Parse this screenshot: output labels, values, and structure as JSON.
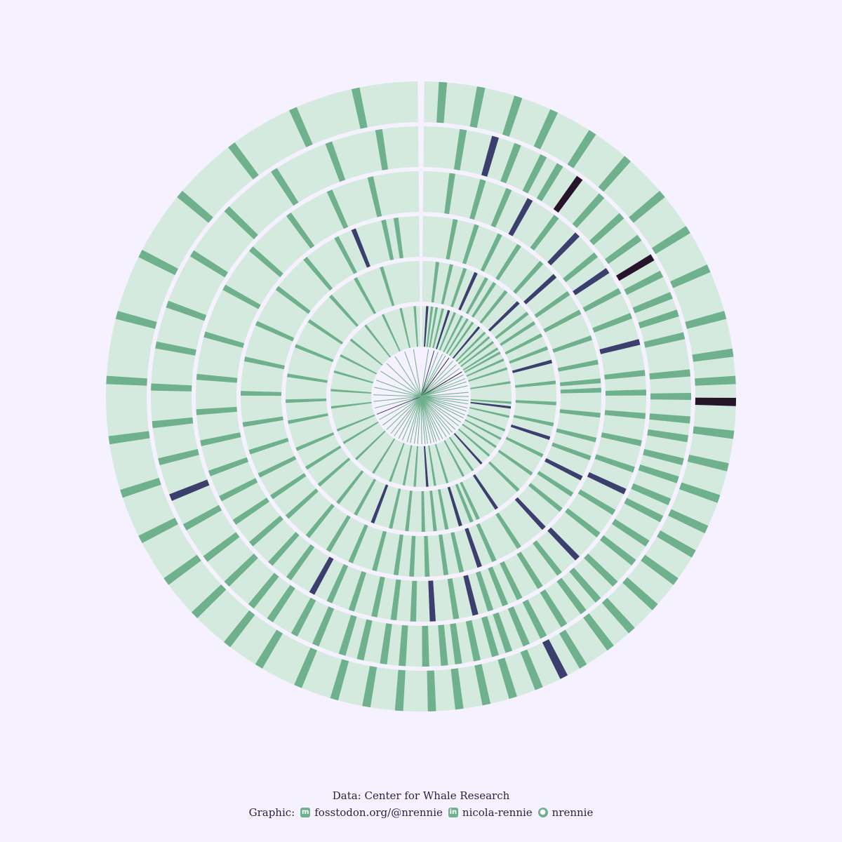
{
  "chart_data": {
    "type": "radial-stripes",
    "title": "",
    "xlabel": "",
    "ylabel": "",
    "ring_count": 6,
    "colors": {
      "background": "#f6f1fe",
      "base": "#d4eadf",
      "level_1": "#6fb08d",
      "level_2": "#3c3f6d",
      "level_3": "#27142b",
      "ring_gap": "#f6f1fe"
    },
    "rings": [
      {
        "ring": 1,
        "stripes": [
          [
            4,
            2
          ],
          [
            7,
            1
          ],
          [
            10,
            1
          ],
          [
            14,
            1
          ],
          [
            18,
            2
          ],
          [
            22,
            1
          ],
          [
            27,
            1
          ],
          [
            31,
            1
          ],
          [
            35,
            1
          ],
          [
            40,
            2
          ],
          [
            45,
            1
          ],
          [
            49,
            1
          ],
          [
            53,
            1
          ],
          [
            58,
            1
          ],
          [
            61,
            1
          ],
          [
            66,
            1
          ],
          [
            72,
            1
          ],
          [
            81,
            1
          ],
          [
            94,
            1
          ],
          [
            97,
            2
          ],
          [
            103,
            1
          ],
          [
            112,
            1
          ],
          [
            118,
            1
          ],
          [
            124,
            1
          ],
          [
            131,
            1
          ],
          [
            138,
            2
          ],
          [
            145,
            1
          ],
          [
            152,
            1
          ],
          [
            163,
            1
          ],
          [
            171,
            1
          ],
          [
            176,
            2
          ],
          [
            184,
            1
          ],
          [
            191,
            1
          ],
          [
            200,
            1
          ],
          [
            212,
            1
          ],
          [
            226,
            1
          ],
          [
            239,
            1
          ],
          [
            248,
            1
          ],
          [
            263,
            1
          ],
          [
            274,
            1
          ],
          [
            286,
            1
          ],
          [
            297,
            1
          ],
          [
            309,
            1
          ],
          [
            322,
            1
          ],
          [
            335,
            1
          ],
          [
            347,
            1
          ],
          [
            356,
            1
          ]
        ]
      },
      {
        "ring": 2,
        "stripes": [
          [
            7,
            1
          ],
          [
            13,
            1
          ],
          [
            19,
            1
          ],
          [
            24,
            2
          ],
          [
            29,
            1
          ],
          [
            33,
            1
          ],
          [
            39,
            1
          ],
          [
            46,
            2
          ],
          [
            52,
            1
          ],
          [
            57,
            1
          ],
          [
            63,
            1
          ],
          [
            69,
            1
          ],
          [
            75,
            2
          ],
          [
            84,
            1
          ],
          [
            93,
            1
          ],
          [
            102,
            1
          ],
          [
            108,
            2
          ],
          [
            116,
            1
          ],
          [
            125,
            1
          ],
          [
            134,
            1
          ],
          [
            146,
            2
          ],
          [
            155,
            1
          ],
          [
            158,
            1
          ],
          [
            163,
            2
          ],
          [
            169,
            1
          ],
          [
            174,
            1
          ],
          [
            179,
            1
          ],
          [
            186,
            1
          ],
          [
            193,
            1
          ],
          [
            201,
            2
          ],
          [
            209,
            1
          ],
          [
            218,
            1
          ],
          [
            229,
            1
          ],
          [
            238,
            1
          ],
          [
            247,
            1
          ],
          [
            259,
            1
          ],
          [
            268,
            1
          ],
          [
            279,
            1
          ],
          [
            292,
            1
          ],
          [
            304,
            1
          ],
          [
            318,
            1
          ],
          [
            331,
            1
          ],
          [
            343,
            1
          ]
        ]
      },
      {
        "ring": 3,
        "stripes": [
          [
            11,
            1
          ],
          [
            18,
            1
          ],
          [
            26,
            1
          ],
          [
            33,
            1
          ],
          [
            42,
            1
          ],
          [
            48,
            2
          ],
          [
            55,
            1
          ],
          [
            62,
            1
          ],
          [
            71,
            1
          ],
          [
            79,
            1
          ],
          [
            85,
            1
          ],
          [
            88,
            1
          ],
          [
            96,
            1
          ],
          [
            104,
            1
          ],
          [
            110,
            1
          ],
          [
            117,
            2
          ],
          [
            123,
            1
          ],
          [
            129,
            1
          ],
          [
            137,
            2
          ],
          [
            147,
            1
          ],
          [
            156,
            1
          ],
          [
            161,
            2
          ],
          [
            167,
            1
          ],
          [
            172,
            1
          ],
          [
            178,
            1
          ],
          [
            183,
            1
          ],
          [
            188,
            1
          ],
          [
            195,
            1
          ],
          [
            203,
            1
          ],
          [
            211,
            1
          ],
          [
            219,
            1
          ],
          [
            228,
            1
          ],
          [
            236,
            1
          ],
          [
            244,
            1
          ],
          [
            252,
            1
          ],
          [
            261,
            1
          ],
          [
            271,
            1
          ],
          [
            282,
            1
          ],
          [
            294,
            1
          ],
          [
            307,
            1
          ],
          [
            320,
            1
          ],
          [
            332,
            1
          ],
          [
            338,
            2
          ],
          [
            348,
            1
          ],
          [
            352,
            1
          ]
        ]
      },
      {
        "ring": 4,
        "stripes": [
          [
            8,
            1
          ],
          [
            16,
            1
          ],
          [
            23,
            1
          ],
          [
            29,
            2
          ],
          [
            37,
            1
          ],
          [
            44,
            2
          ],
          [
            51,
            1
          ],
          [
            56,
            2
          ],
          [
            62,
            1
          ],
          [
            69,
            1
          ],
          [
            76,
            2
          ],
          [
            84,
            1
          ],
          [
            89,
            1
          ],
          [
            95,
            1
          ],
          [
            102,
            1
          ],
          [
            109,
            1
          ],
          [
            115,
            2
          ],
          [
            121,
            1
          ],
          [
            128,
            1
          ],
          [
            136,
            2
          ],
          [
            142,
            1
          ],
          [
            148,
            1
          ],
          [
            154,
            1
          ],
          [
            158,
            1
          ],
          [
            162,
            1
          ],
          [
            166,
            2
          ],
          [
            171,
            1
          ],
          [
            177,
            2
          ],
          [
            182,
            1
          ],
          [
            187,
            1
          ],
          [
            192,
            1
          ],
          [
            198,
            1
          ],
          [
            204,
            1
          ],
          [
            209,
            2
          ],
          [
            216,
            1
          ],
          [
            222,
            1
          ],
          [
            229,
            1
          ],
          [
            236,
            1
          ],
          [
            243,
            1
          ],
          [
            250,
            1
          ],
          [
            258,
            1
          ],
          [
            266,
            1
          ],
          [
            275,
            1
          ],
          [
            286,
            1
          ],
          [
            299,
            1
          ],
          [
            311,
            1
          ],
          [
            324,
            1
          ],
          [
            336,
            1
          ],
          [
            347,
            1
          ]
        ]
      },
      {
        "ring": 5,
        "stripes": [
          [
            9,
            1
          ],
          [
            16,
            2
          ],
          [
            21,
            1
          ],
          [
            27,
            1
          ],
          [
            31,
            1
          ],
          [
            36,
            3
          ],
          [
            42,
            1
          ],
          [
            48,
            1
          ],
          [
            54,
            1
          ],
          [
            59,
            3
          ],
          [
            63,
            1
          ],
          [
            68,
            1
          ],
          [
            72,
            1
          ],
          [
            77,
            1
          ],
          [
            85,
            1
          ],
          [
            90,
            1
          ],
          [
            95,
            1
          ],
          [
            99,
            1
          ],
          [
            104,
            1
          ],
          [
            108,
            1
          ],
          [
            113,
            1
          ],
          [
            117,
            1
          ],
          [
            123,
            1
          ],
          [
            128,
            1
          ],
          [
            134,
            1
          ],
          [
            139,
            1
          ],
          [
            143,
            1
          ],
          [
            148,
            1
          ],
          [
            153,
            1
          ],
          [
            157,
            1
          ],
          [
            161,
            1
          ],
          [
            164,
            1
          ],
          [
            168,
            1
          ],
          [
            172,
            1
          ],
          [
            175,
            1
          ],
          [
            179,
            1
          ],
          [
            184,
            1
          ],
          [
            188,
            1
          ],
          [
            193,
            1
          ],
          [
            197,
            1
          ],
          [
            203,
            1
          ],
          [
            208,
            1
          ],
          [
            214,
            1
          ],
          [
            219,
            1
          ],
          [
            226,
            1
          ],
          [
            233,
            1
          ],
          [
            241,
            1
          ],
          [
            248,
            2
          ],
          [
            256,
            1
          ],
          [
            264,
            1
          ],
          [
            272,
            1
          ],
          [
            281,
            1
          ],
          [
            290,
            1
          ],
          [
            302,
            1
          ],
          [
            314,
            1
          ],
          [
            327,
            1
          ],
          [
            340,
            1
          ],
          [
            351,
            1
          ]
        ]
      },
      {
        "ring": 6,
        "stripes": [
          [
            4,
            1
          ],
          [
            11,
            1
          ],
          [
            18,
            1
          ],
          [
            25,
            1
          ],
          [
            33,
            1
          ],
          [
            41,
            1
          ],
          [
            50,
            1
          ],
          [
            58,
            1
          ],
          [
            66,
            1
          ],
          [
            75,
            1
          ],
          [
            82,
            1
          ],
          [
            87,
            1
          ],
          [
            91,
            3
          ],
          [
            97,
            1
          ],
          [
            103,
            1
          ],
          [
            109,
            1
          ],
          [
            115,
            1
          ],
          [
            120,
            1
          ],
          [
            126,
            1
          ],
          [
            132,
            1
          ],
          [
            138,
            1
          ],
          [
            143,
            1
          ],
          [
            149,
            1
          ],
          [
            153,
            2
          ],
          [
            158,
            1
          ],
          [
            163,
            1
          ],
          [
            168,
            1
          ],
          [
            173,
            1
          ],
          [
            178,
            1
          ],
          [
            184,
            1
          ],
          [
            190,
            1
          ],
          [
            196,
            1
          ],
          [
            203,
            1
          ],
          [
            211,
            1
          ],
          [
            218,
            1
          ],
          [
            226,
            1
          ],
          [
            234,
            1
          ],
          [
            243,
            1
          ],
          [
            252,
            1
          ],
          [
            262,
            1
          ],
          [
            273,
            1
          ],
          [
            285,
            1
          ],
          [
            297,
            1
          ],
          [
            310,
            1
          ],
          [
            323,
            1
          ],
          [
            336,
            1
          ],
          [
            348,
            1
          ]
        ]
      }
    ]
  },
  "caption": {
    "data_line": "Data: Center for Whale Research",
    "graphic_label": "Graphic:",
    "mastodon": "fosstodon.org/@nrennie",
    "linkedin": "nicola-rennie",
    "github": "nrennie",
    "icons": {
      "mastodon": "mastodon-icon",
      "linkedin": "linkedin-icon",
      "github": "github-icon"
    }
  }
}
